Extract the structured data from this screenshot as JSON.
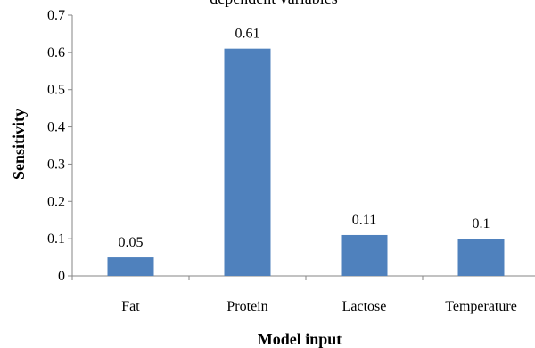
{
  "chart_data": {
    "type": "bar",
    "title": "dependent variables",
    "xlabel": "Model input",
    "ylabel": "Sensitivity",
    "categories": [
      "Fat",
      "Protein",
      "Lactose",
      "Temperature"
    ],
    "values": [
      0.05,
      0.61,
      0.11,
      0.1
    ],
    "data_labels": [
      "0.05",
      "0.61",
      "0.11",
      "0.1"
    ],
    "ylim": [
      0,
      0.7
    ],
    "yticks": [
      0,
      0.1,
      0.2,
      0.3,
      0.4,
      0.5,
      0.6,
      0.7
    ],
    "ytick_labels": [
      "0",
      "0.1",
      "0.2",
      "0.3",
      "0.4",
      "0.5",
      "0.6",
      "0.7"
    ],
    "grid": false,
    "legend": "none",
    "bar_color": "#4F81BD"
  }
}
